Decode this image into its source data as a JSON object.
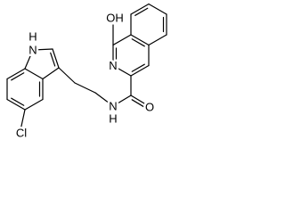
{
  "atoms": [
    "H",
    "N",
    "Cl",
    "N",
    "H",
    "O",
    "OH",
    "N"
  ]
}
